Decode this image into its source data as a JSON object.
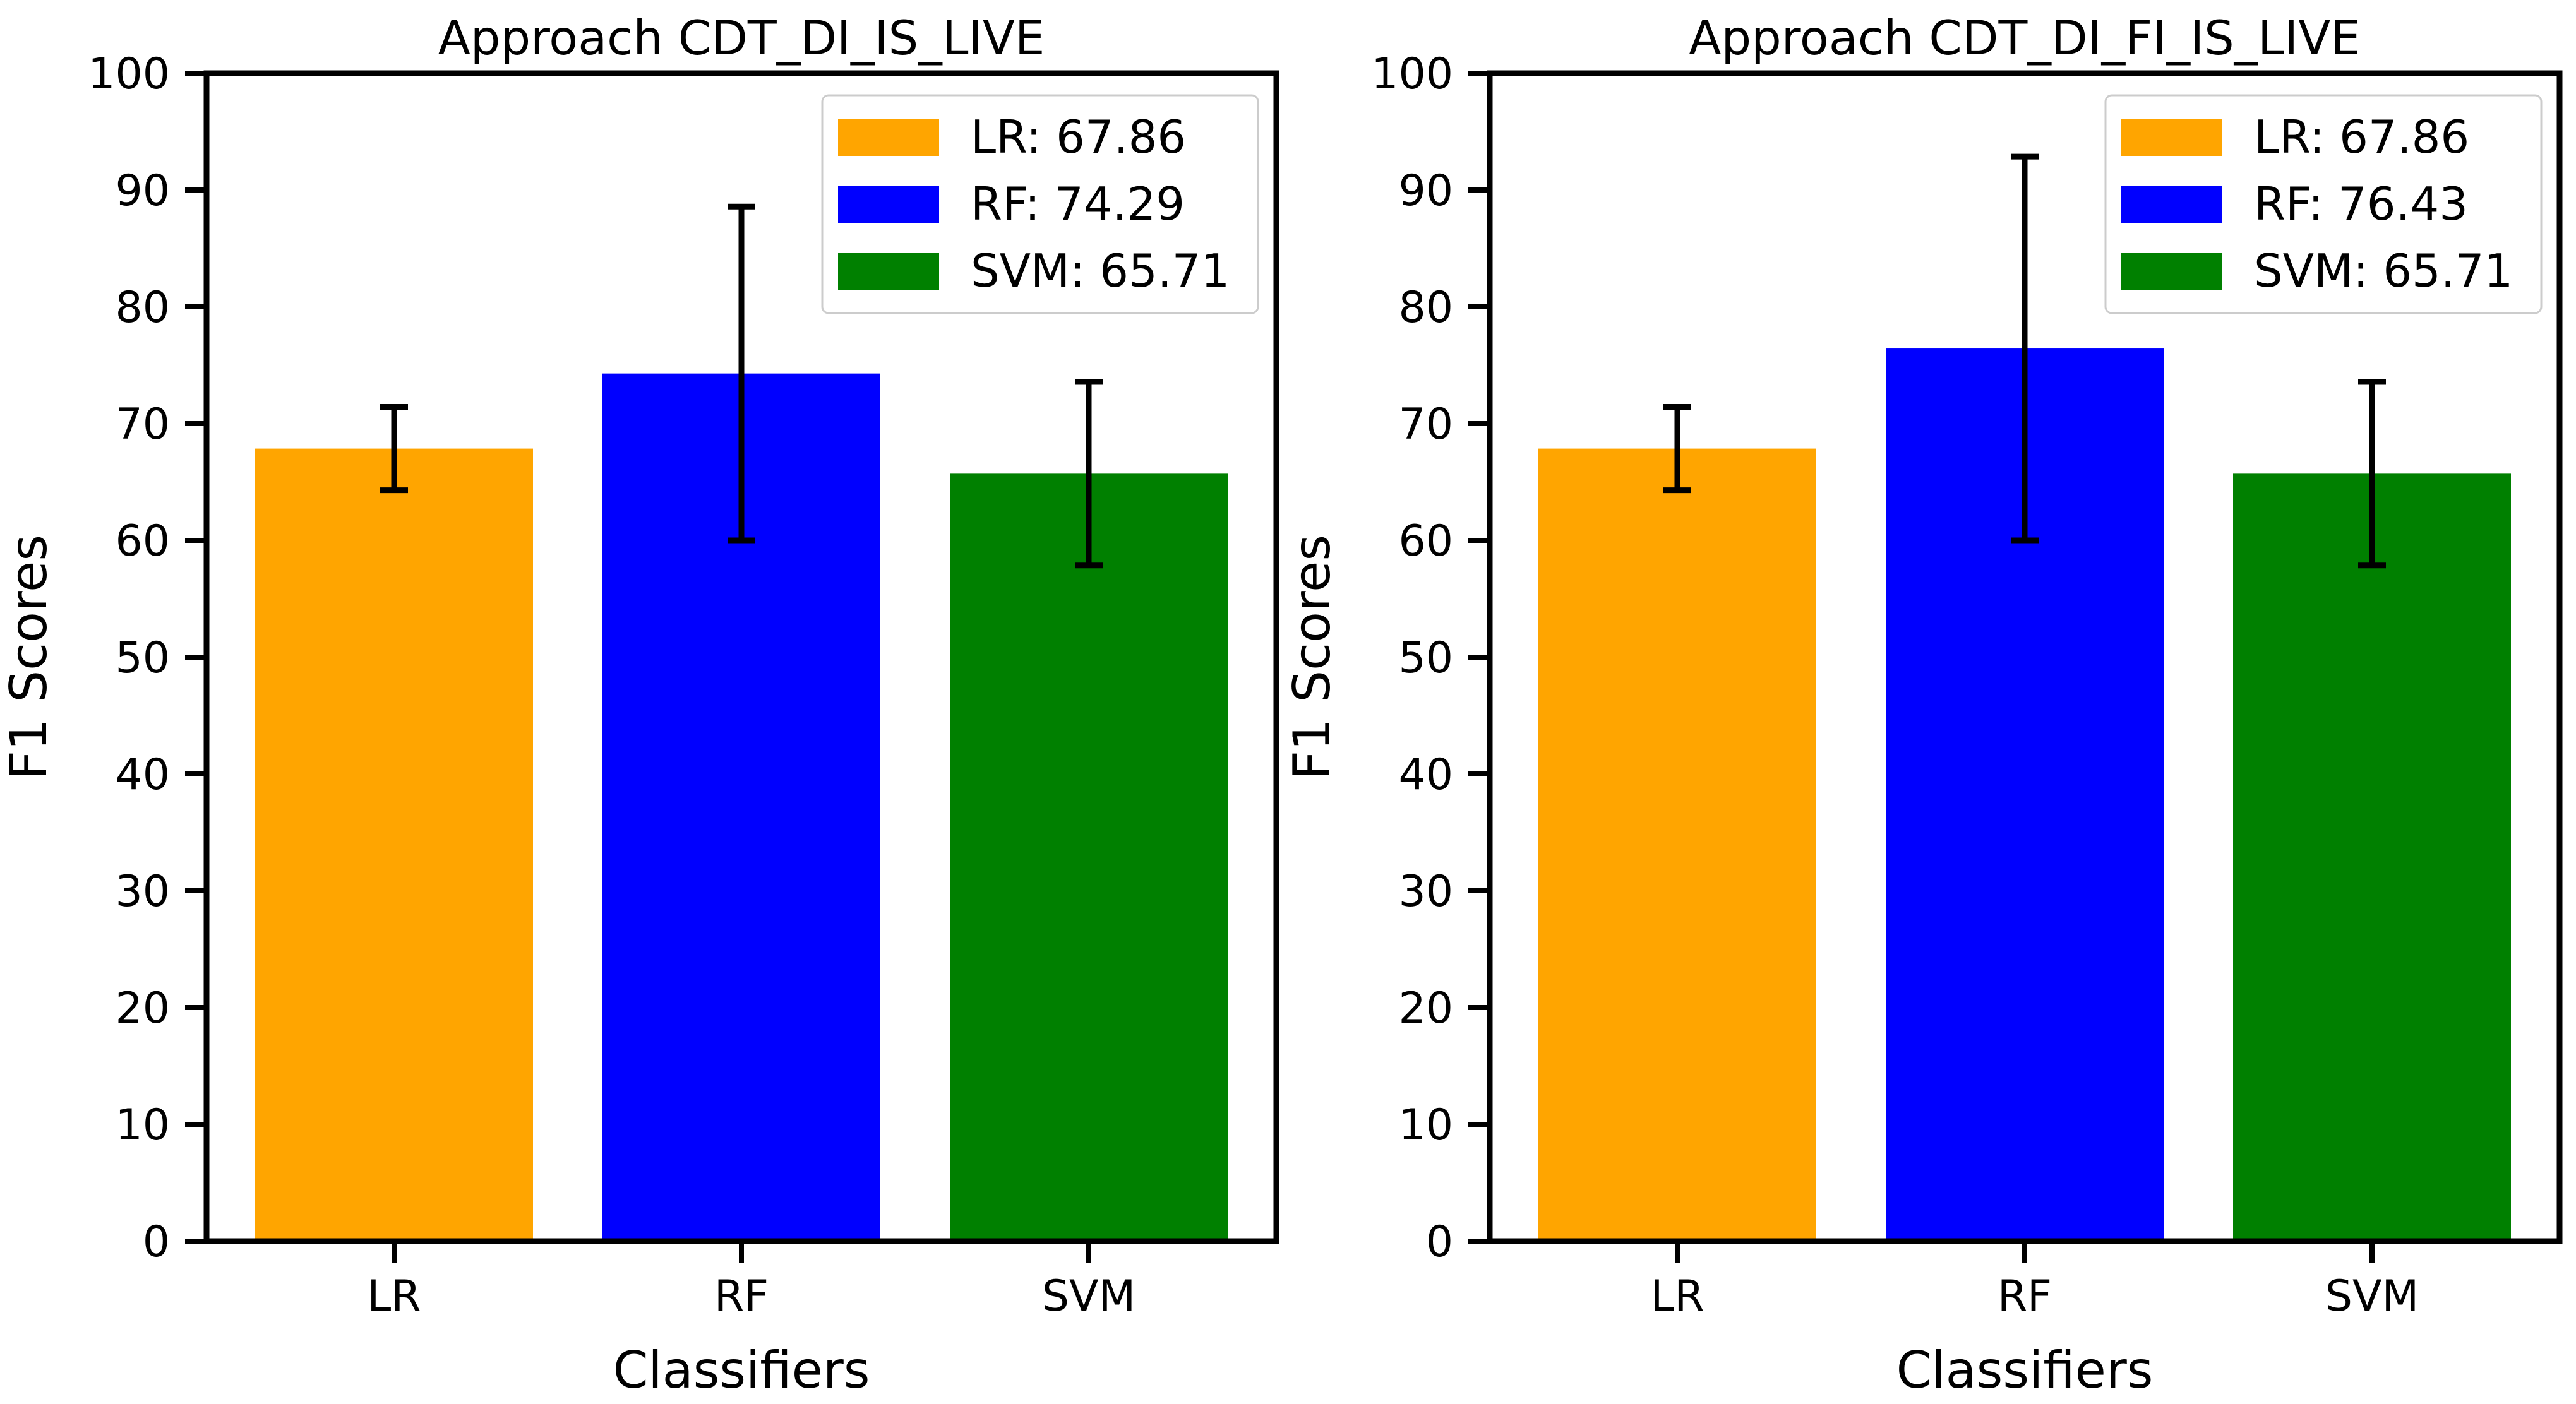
{
  "colors": {
    "LR": "#FFA500",
    "RF": "#0000FF",
    "SVM": "#008000",
    "axis": "#000000",
    "error_bar": "#000000",
    "legend_border": "#cccccc",
    "background": "#ffffff"
  },
  "chart_data": [
    {
      "type": "bar",
      "title": "Approach CDT_DI_IS_LIVE",
      "xlabel": "Classifiers",
      "ylabel": "F1 Scores",
      "ylim": [
        0,
        100
      ],
      "yticks": [
        "0",
        "10",
        "20",
        "30",
        "40",
        "50",
        "60",
        "70",
        "80",
        "90",
        "100"
      ],
      "categories": [
        "LR",
        "RF",
        "SVM"
      ],
      "values": [
        67.86,
        74.29,
        65.71
      ],
      "errors": [
        3.57,
        14.29,
        7.86
      ],
      "legend": {
        "placement": "top-right",
        "entries": [
          "LR: 67.86",
          "RF: 74.29",
          "SVM: 65.71"
        ]
      },
      "grid": false
    },
    {
      "type": "bar",
      "title": "Approach CDT_DI_FI_IS_LIVE",
      "xlabel": "Classifiers",
      "ylabel": "F1 Scores",
      "ylim": [
        0,
        100
      ],
      "yticks": [
        "0",
        "10",
        "20",
        "30",
        "40",
        "50",
        "60",
        "70",
        "80",
        "90",
        "100"
      ],
      "categories": [
        "LR",
        "RF",
        "SVM"
      ],
      "values": [
        67.86,
        76.43,
        65.71
      ],
      "errors": [
        3.57,
        16.43,
        7.86
      ],
      "legend": {
        "placement": "top-right",
        "entries": [
          "LR: 67.86",
          "RF: 76.43",
          "SVM: 65.71"
        ]
      },
      "grid": false
    }
  ]
}
